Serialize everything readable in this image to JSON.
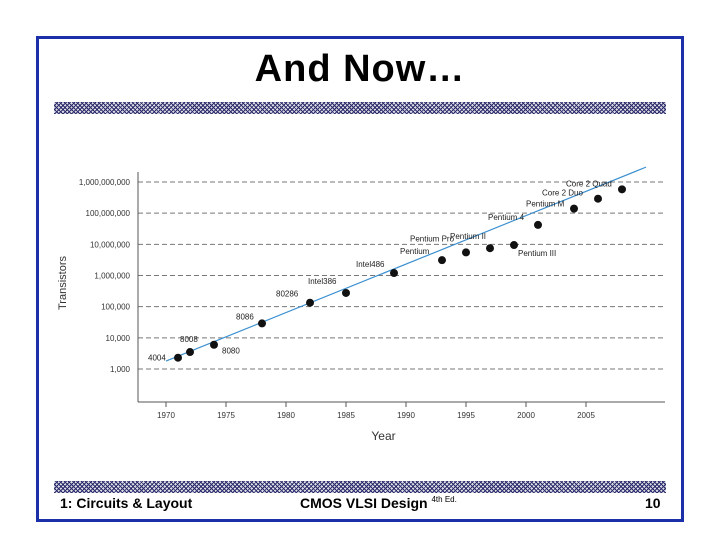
{
  "slide": {
    "title": "And Now…",
    "footer_left": "1: Circuits & Layout",
    "footer_center": "CMOS VLSI Design",
    "footer_center_sup": "4th Ed.",
    "page_number": "10",
    "frame_color": "#1a2fa8"
  },
  "chart_data": {
    "type": "scatter",
    "title": "",
    "xlabel": "Year",
    "ylabel": "Transistors",
    "yscale": "log",
    "xlim": [
      1966,
      2010
    ],
    "ylim": [
      100,
      3000000000
    ],
    "x_ticks": [
      1970,
      1975,
      1980,
      1985,
      1990,
      1995,
      2000,
      2005
    ],
    "x_tick_labels": [
      "1970",
      "1975",
      "1980",
      "1985",
      "1990",
      "1995",
      "2000",
      "2005"
    ],
    "y_ticks": [
      1000,
      10000,
      100000,
      1000000,
      10000000,
      100000000,
      1000000000
    ],
    "y_tick_labels": [
      "1,000",
      "10,000",
      "100,000",
      "1,000,000",
      "10,000,000",
      "100,000,000",
      "1,000,000,000"
    ],
    "grid": "horizontal dashed",
    "point_color": "#111111",
    "trend_color": "#3a8fd0",
    "trend": [
      [
        1970,
        1800
      ],
      [
        2010,
        3000000000
      ]
    ],
    "points": [
      {
        "label": "4004",
        "x": 1971,
        "y": 2300
      },
      {
        "label": "8008",
        "x": 1972,
        "y": 3500
      },
      {
        "label": "8080",
        "x": 1974,
        "y": 6000
      },
      {
        "label": "8086",
        "x": 1978,
        "y": 29000
      },
      {
        "label": "80286",
        "x": 1982,
        "y": 134000
      },
      {
        "label": "Intel386",
        "x": 1985,
        "y": 275000
      },
      {
        "label": "Intel486",
        "x": 1989,
        "y": 1200000
      },
      {
        "label": "Pentium",
        "x": 1993,
        "y": 3100000
      },
      {
        "label": "Pentium Pro",
        "x": 1995,
        "y": 5500000
      },
      {
        "label": "Pentium II",
        "x": 1997,
        "y": 7500000
      },
      {
        "label": "Pentium III",
        "x": 1999,
        "y": 9500000
      },
      {
        "label": "Pentium 4",
        "x": 2001,
        "y": 42000000
      },
      {
        "label": "Pentium M",
        "x": 2004,
        "y": 140000000
      },
      {
        "label": "Core 2 Duo",
        "x": 2006,
        "y": 291000000
      },
      {
        "label": "Core 2 Quad",
        "x": 2008,
        "y": 582000000
      }
    ]
  }
}
